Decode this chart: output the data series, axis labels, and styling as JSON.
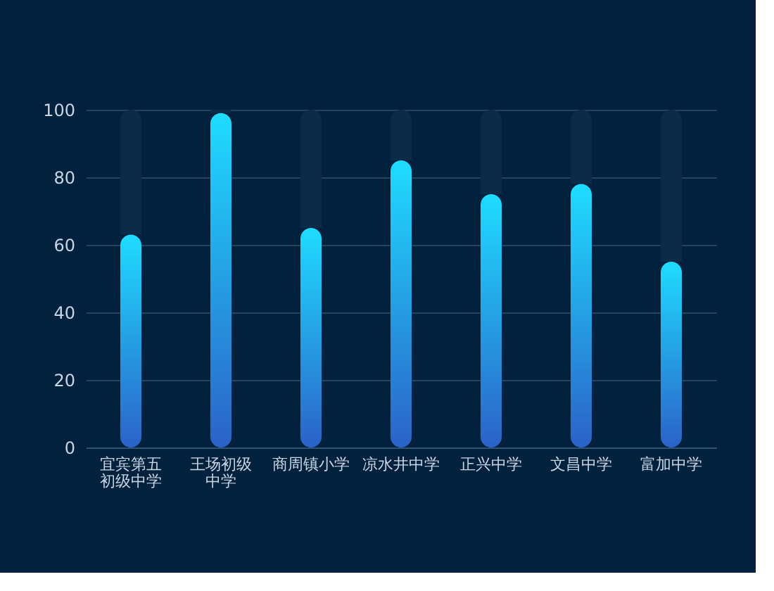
{
  "chart_data": {
    "type": "bar",
    "stacked": true,
    "categories": [
      "宜宾第五初级中学",
      "王场初级中学",
      "商周镇小学",
      "凉水井中学",
      "正兴中学",
      "文昌中学",
      "富加中学"
    ],
    "series": [
      {
        "color": "#1fdcff",
        "values": [
          63,
          99,
          65,
          85,
          75,
          78,
          55
        ]
      },
      {
        "color": "#0c2b48",
        "values": [
          37,
          1,
          35,
          15,
          25,
          22,
          45
        ]
      }
    ],
    "ylim": [
      0,
      100
    ],
    "yticks": [
      0,
      20,
      40,
      60,
      80,
      100
    ],
    "grid": "y"
  }
}
